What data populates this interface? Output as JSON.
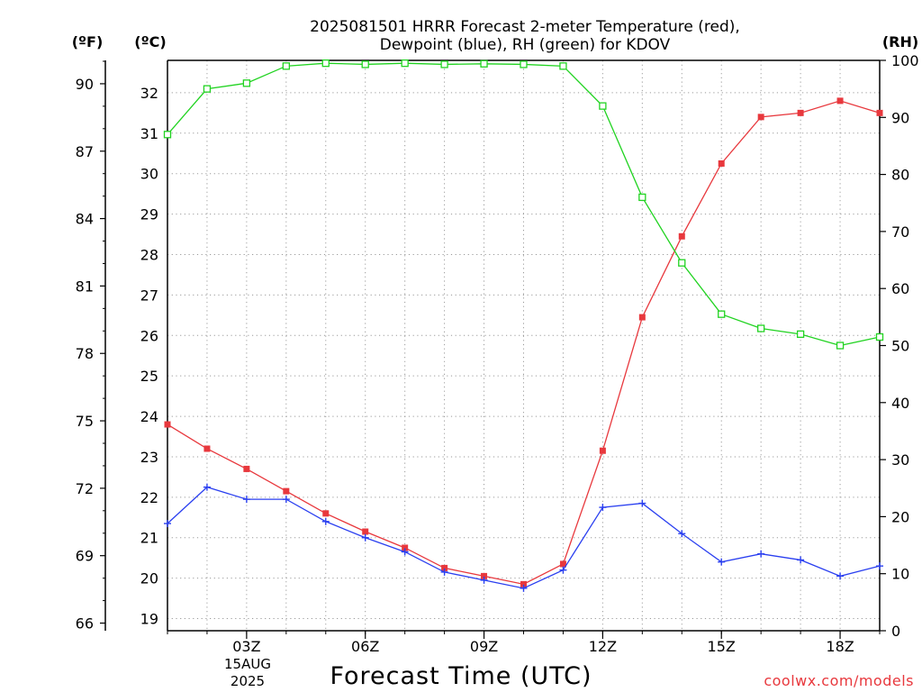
{
  "chart_data": {
    "type": "line",
    "title_line1": "2025081501 HRRR Forecast 2-meter Temperature (red),",
    "title_line2": "Dewpoint (blue), RH (green) for KDOV",
    "unit_labels": {
      "fahrenheit": "(ºF)",
      "celsius": "(ºC)",
      "rh": "(RH)"
    },
    "xlabel": "Forecast Time (UTC)",
    "watermark": "coolwx.com/models",
    "date_labels": {
      "day": "15AUG",
      "year": "2025"
    },
    "x_hours": [
      1,
      2,
      3,
      4,
      5,
      6,
      7,
      8,
      9,
      10,
      11,
      12,
      13,
      14,
      15,
      16,
      17,
      18,
      19
    ],
    "xlim": [
      1,
      19
    ],
    "x_ticks": [
      3,
      6,
      9,
      12,
      15,
      18
    ],
    "x_tick_labels": [
      "03Z",
      "06Z",
      "09Z",
      "12Z",
      "15Z",
      "18Z"
    ],
    "celsius_axis": {
      "ylim": [
        18.7,
        32.8
      ],
      "ticks": [
        19,
        20,
        21,
        22,
        23,
        24,
        25,
        26,
        27,
        28,
        29,
        30,
        31,
        32
      ]
    },
    "fahrenheit_axis": {
      "ticks": [
        66,
        69,
        72,
        75,
        78,
        81,
        84,
        87,
        90
      ]
    },
    "rh_axis": {
      "ylim": [
        0,
        100
      ],
      "ticks": [
        0,
        10,
        20,
        30,
        40,
        50,
        60,
        70,
        80,
        90,
        100
      ]
    },
    "grid": true,
    "series": [
      {
        "name": "Temperature",
        "axis": "celsius",
        "color": "#e8383d",
        "marker": "filled-square",
        "values": [
          23.8,
          23.2,
          22.7,
          22.15,
          21.6,
          21.15,
          20.75,
          20.25,
          20.05,
          19.85,
          20.35,
          23.15,
          26.45,
          28.45,
          30.25,
          31.4,
          31.5,
          31.8,
          31.5
        ]
      },
      {
        "name": "Dewpoint",
        "axis": "celsius",
        "color": "#2a3ff0",
        "marker": "plus",
        "values": [
          21.35,
          22.25,
          21.95,
          21.95,
          21.4,
          21.0,
          20.65,
          20.15,
          19.95,
          19.75,
          20.2,
          21.75,
          21.85,
          21.1,
          20.4,
          20.6,
          20.45,
          20.05,
          20.3
        ]
      },
      {
        "name": "RH",
        "axis": "rh",
        "color": "#21d321",
        "marker": "open-square",
        "values": [
          87,
          95,
          96,
          99,
          99.5,
          99.3,
          99.5,
          99.3,
          99.4,
          99.3,
          99,
          92,
          76,
          64.5,
          55.5,
          53,
          52,
          50,
          51.5
        ]
      }
    ]
  }
}
